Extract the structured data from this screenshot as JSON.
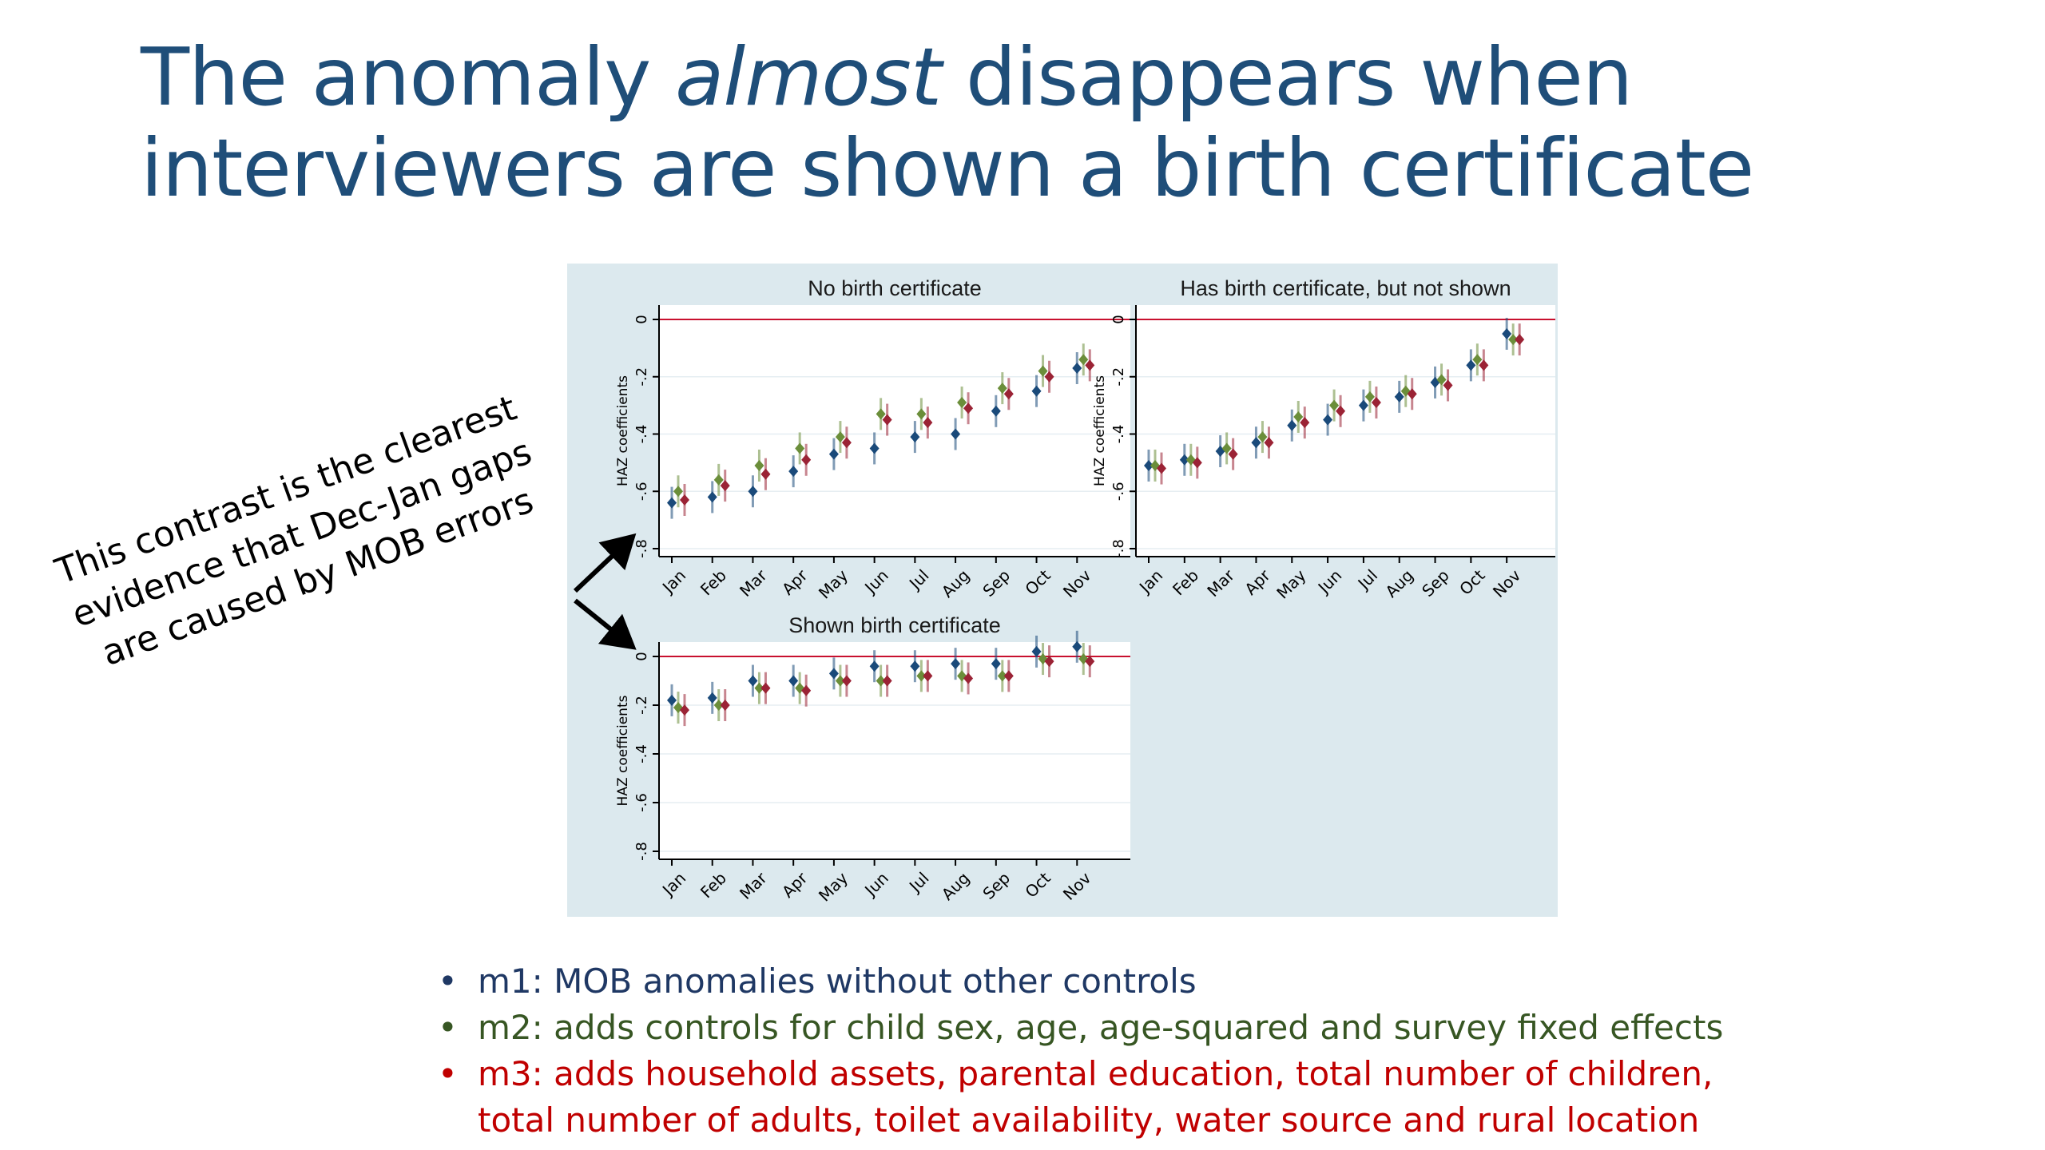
{
  "slide": {
    "title": {
      "line1_before": "The anomaly ",
      "line1_em": "almost",
      "line1_after": " disappears when",
      "line2": "interviewers are shown a birth certificate"
    },
    "callout": {
      "lines": [
        "This contrast is the clearest",
        "evidence that Dec-Jan gaps",
        "are caused by MOB errors"
      ]
    },
    "legend": {
      "bullet": "•",
      "items": [
        {
          "text": "m1: MOB anomalies without other controls",
          "color": "#1f3864"
        },
        {
          "text": "m2: adds controls for child sex, age, age-squared and survey fixed effects",
          "color": "#375623"
        },
        {
          "text": "m3: adds household assets, parental education, total number of children,",
          "cont": "total number of adults, toilet availability, water source and rural location",
          "color": "#c00000"
        }
      ]
    }
  },
  "colors": {
    "m1": "#1a4a7a",
    "m2": "#6b8e3a",
    "m3": "#9b2335",
    "zero_line": "#c8102e",
    "panel_bg": "#dce9ee"
  },
  "chart_data": [
    {
      "type": "scatter",
      "title": "No birth certificate",
      "ylabel": "HAZ coefficients",
      "ylim": [
        -0.8,
        0
      ],
      "yticks": [
        "0",
        "-.2",
        "-.4",
        "-.6",
        "-.8"
      ],
      "categories": [
        "Jan",
        "Feb",
        "Mar",
        "Apr",
        "May",
        "Jun",
        "Jul",
        "Aug",
        "Sep",
        "Oct",
        "Nov"
      ],
      "series": [
        {
          "name": "m1",
          "values": [
            -0.64,
            -0.62,
            -0.6,
            -0.53,
            -0.47,
            -0.45,
            -0.41,
            -0.4,
            -0.32,
            -0.25,
            -0.17
          ]
        },
        {
          "name": "m2",
          "values": [
            -0.6,
            -0.56,
            -0.51,
            -0.45,
            -0.41,
            -0.33,
            -0.33,
            -0.29,
            -0.24,
            -0.18,
            -0.14
          ]
        },
        {
          "name": "m3",
          "values": [
            -0.63,
            -0.58,
            -0.54,
            -0.49,
            -0.43,
            -0.35,
            -0.36,
            -0.31,
            -0.26,
            -0.2,
            -0.16
          ]
        }
      ]
    },
    {
      "type": "scatter",
      "title": "Has birth certificate, but not shown",
      "ylabel": "HAZ coefficients",
      "ylim": [
        -0.8,
        0
      ],
      "yticks": [
        "0",
        "-.2",
        "-.4",
        "-.6",
        "-.8"
      ],
      "categories": [
        "Jan",
        "Feb",
        "Mar",
        "Apr",
        "May",
        "Jun",
        "Jul",
        "Aug",
        "Sep",
        "Oct",
        "Nov"
      ],
      "series": [
        {
          "name": "m1",
          "values": [
            -0.51,
            -0.49,
            -0.46,
            -0.43,
            -0.37,
            -0.35,
            -0.3,
            -0.27,
            -0.22,
            -0.16,
            -0.05
          ]
        },
        {
          "name": "m2",
          "values": [
            -0.51,
            -0.49,
            -0.45,
            -0.41,
            -0.34,
            -0.3,
            -0.27,
            -0.25,
            -0.21,
            -0.14,
            -0.07
          ]
        },
        {
          "name": "m3",
          "values": [
            -0.52,
            -0.5,
            -0.47,
            -0.43,
            -0.36,
            -0.32,
            -0.29,
            -0.26,
            -0.23,
            -0.16,
            -0.07
          ]
        }
      ]
    },
    {
      "type": "scatter",
      "title": "Shown birth certificate",
      "ylabel": "HAZ coefficients",
      "ylim": [
        -0.8,
        0
      ],
      "yticks": [
        "0",
        "-.2",
        "-.4",
        "-.6",
        "-.8"
      ],
      "categories": [
        "Jan",
        "Feb",
        "Mar",
        "Apr",
        "May",
        "Jun",
        "Jul",
        "Aug",
        "Sep",
        "Oct",
        "Nov"
      ],
      "series": [
        {
          "name": "m1",
          "values": [
            -0.18,
            -0.17,
            -0.1,
            -0.1,
            -0.07,
            -0.04,
            -0.04,
            -0.03,
            -0.03,
            0.02,
            0.04
          ]
        },
        {
          "name": "m2",
          "values": [
            -0.21,
            -0.2,
            -0.13,
            -0.13,
            -0.1,
            -0.1,
            -0.08,
            -0.08,
            -0.08,
            -0.01,
            -0.01
          ]
        },
        {
          "name": "m3",
          "values": [
            -0.22,
            -0.2,
            -0.13,
            -0.14,
            -0.1,
            -0.1,
            -0.08,
            -0.09,
            -0.08,
            -0.02,
            -0.02
          ]
        }
      ]
    }
  ]
}
